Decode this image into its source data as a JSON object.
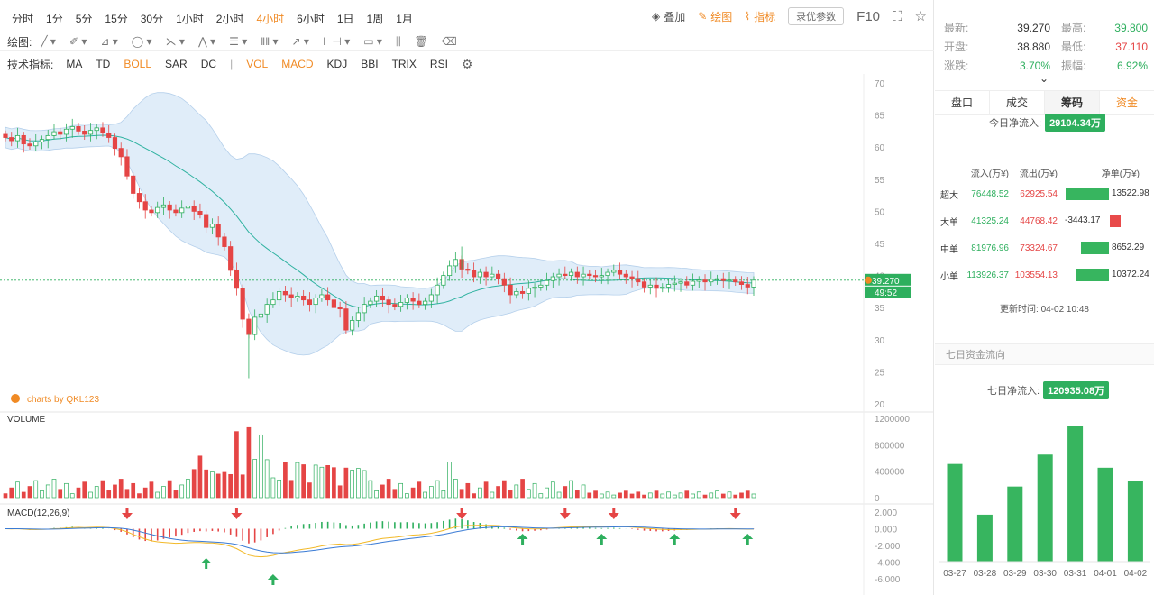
{
  "toolbar": {
    "timeframes": [
      "分时",
      "1分",
      "5分",
      "15分",
      "30分",
      "1小时",
      "2小时",
      "4小时",
      "6小时",
      "1日",
      "1周",
      "1月"
    ],
    "active_timeframe": "4小时",
    "overlay_label": "叠加",
    "draw_label": "绘图",
    "indicator_label": "指标",
    "settings_label": "录优参数",
    "f10_label": "F10"
  },
  "drawing": {
    "label": "绘图:"
  },
  "indicators": {
    "label": "技术指标:",
    "main": [
      "MA",
      "TD",
      "BOLL",
      "SAR",
      "DC"
    ],
    "sub": [
      "VOL",
      "MACD",
      "KDJ",
      "BBI",
      "TRIX",
      "RSI"
    ],
    "active": [
      "BOLL",
      "VOL",
      "MACD"
    ]
  },
  "chart": {
    "watermark": "charts by QKL123",
    "price_tag": "39.270",
    "countdown_tag": "49:52",
    "volume_label": "VOLUME",
    "macd_label": "MACD(12,26,9)",
    "price_axis": [
      "70",
      "65",
      "60",
      "55",
      "50",
      "45",
      "40",
      "35",
      "30",
      "25",
      "20"
    ],
    "volume_axis": [
      "1200000",
      "800000",
      "400000",
      "0"
    ],
    "macd_axis": [
      "2.000",
      "0.000",
      "-2.000",
      "-4.000",
      "-6.000"
    ]
  },
  "chart_data": {
    "type": "candlestick",
    "price_range": [
      20,
      70
    ],
    "volume_range": [
      0,
      1200000
    ],
    "macd_range": [
      -6,
      2
    ],
    "current_price": 39.27,
    "closes": [
      61.5,
      61.0,
      61.8,
      60.5,
      60.2,
      60.8,
      61.2,
      61.8,
      62.4,
      62.0,
      62.8,
      63.2,
      62.5,
      62.0,
      62.6,
      63.0,
      62.2,
      61.5,
      59.8,
      58.5,
      55.5,
      52.8,
      51.5,
      50.2,
      49.8,
      50.6,
      51.0,
      50.2,
      49.8,
      50.5,
      50.8,
      50.0,
      49.5,
      47.5,
      48.0,
      46.0,
      44.5,
      40.8,
      38.0,
      33.2,
      30.8,
      33.5,
      34.0,
      35.5,
      36.2,
      37.5,
      37.0,
      36.5,
      36.8,
      36.2,
      35.5,
      36.5,
      37.0,
      36.2,
      35.0,
      34.8,
      31.5,
      33.0,
      34.2,
      35.5,
      36.0,
      36.8,
      36.2,
      35.5,
      35.2,
      35.8,
      36.5,
      36.0,
      35.5,
      36.0,
      37.0,
      38.5,
      40.0,
      41.5,
      42.5,
      41.0,
      40.8,
      39.8,
      40.5,
      39.8,
      40.2,
      39.5,
      38.5,
      37.0,
      37.5,
      37.2,
      38.0,
      38.2,
      38.5,
      39.2,
      39.8,
      40.2,
      40.0,
      40.5,
      39.8,
      40.2,
      40.0,
      39.8,
      40.0,
      40.5,
      40.8,
      40.2,
      39.8,
      39.5,
      39.0,
      38.2,
      38.5,
      38.0,
      38.2,
      38.6,
      38.8,
      39.0,
      38.5,
      39.1,
      39.3,
      39.0,
      39.4,
      39.5,
      39.2,
      39.3,
      39.0,
      38.6,
      38.2,
      39.27
    ],
    "volume_peaks": [
      1000000,
      1060000,
      950000,
      630000,
      540000
    ],
    "moneyflow_net_7day": {
      "dates": [
        "03-27",
        "03-28",
        "03-29",
        "03-30",
        "03-31",
        "04-01",
        "04-02"
      ],
      "values": [
        520,
        250,
        400,
        570,
        720,
        500,
        430
      ]
    }
  },
  "stats": {
    "latest_label": "最新:",
    "latest_value": "39.270",
    "high_label": "最高:",
    "high_value": "39.800",
    "open_label": "开盘:",
    "open_value": "38.880",
    "low_label": "最低:",
    "low_value": "37.110",
    "change_label": "涨跌:",
    "change_value": "3.70%",
    "amp_label": "振幅:",
    "amp_value": "6.92%"
  },
  "tabs": [
    "盘口",
    "成交",
    "筹码",
    "资金"
  ],
  "active_tab": "筹码",
  "moneyflow": {
    "today_label": "今日净流入:",
    "today_value": "29104.34万",
    "headers": [
      "流入(万¥)",
      "流出(万¥)",
      "净单(万¥)"
    ],
    "rows": [
      {
        "name": "超大",
        "in": "76448.52",
        "out": "62925.54",
        "net": "13522.98"
      },
      {
        "name": "大单",
        "in": "41325.24",
        "out": "44768.42",
        "net": "-3443.17"
      },
      {
        "name": "中单",
        "in": "81976.96",
        "out": "73324.67",
        "net": "8652.29"
      },
      {
        "name": "小单",
        "in": "113926.37",
        "out": "103554.13",
        "net": "10372.24"
      }
    ],
    "update_label": "更新时间:",
    "update_value": "04-02 10:48",
    "seven_day_title": "七日资金流向",
    "seven_day_label": "七日净流入:",
    "seven_day_value": "120935.08万"
  },
  "colors": {
    "up": "#2eaf5e",
    "down": "#e54545",
    "accent": "#f08a24",
    "boll_fill": "#dbeaf8",
    "mid_line": "#2fb2a0"
  }
}
